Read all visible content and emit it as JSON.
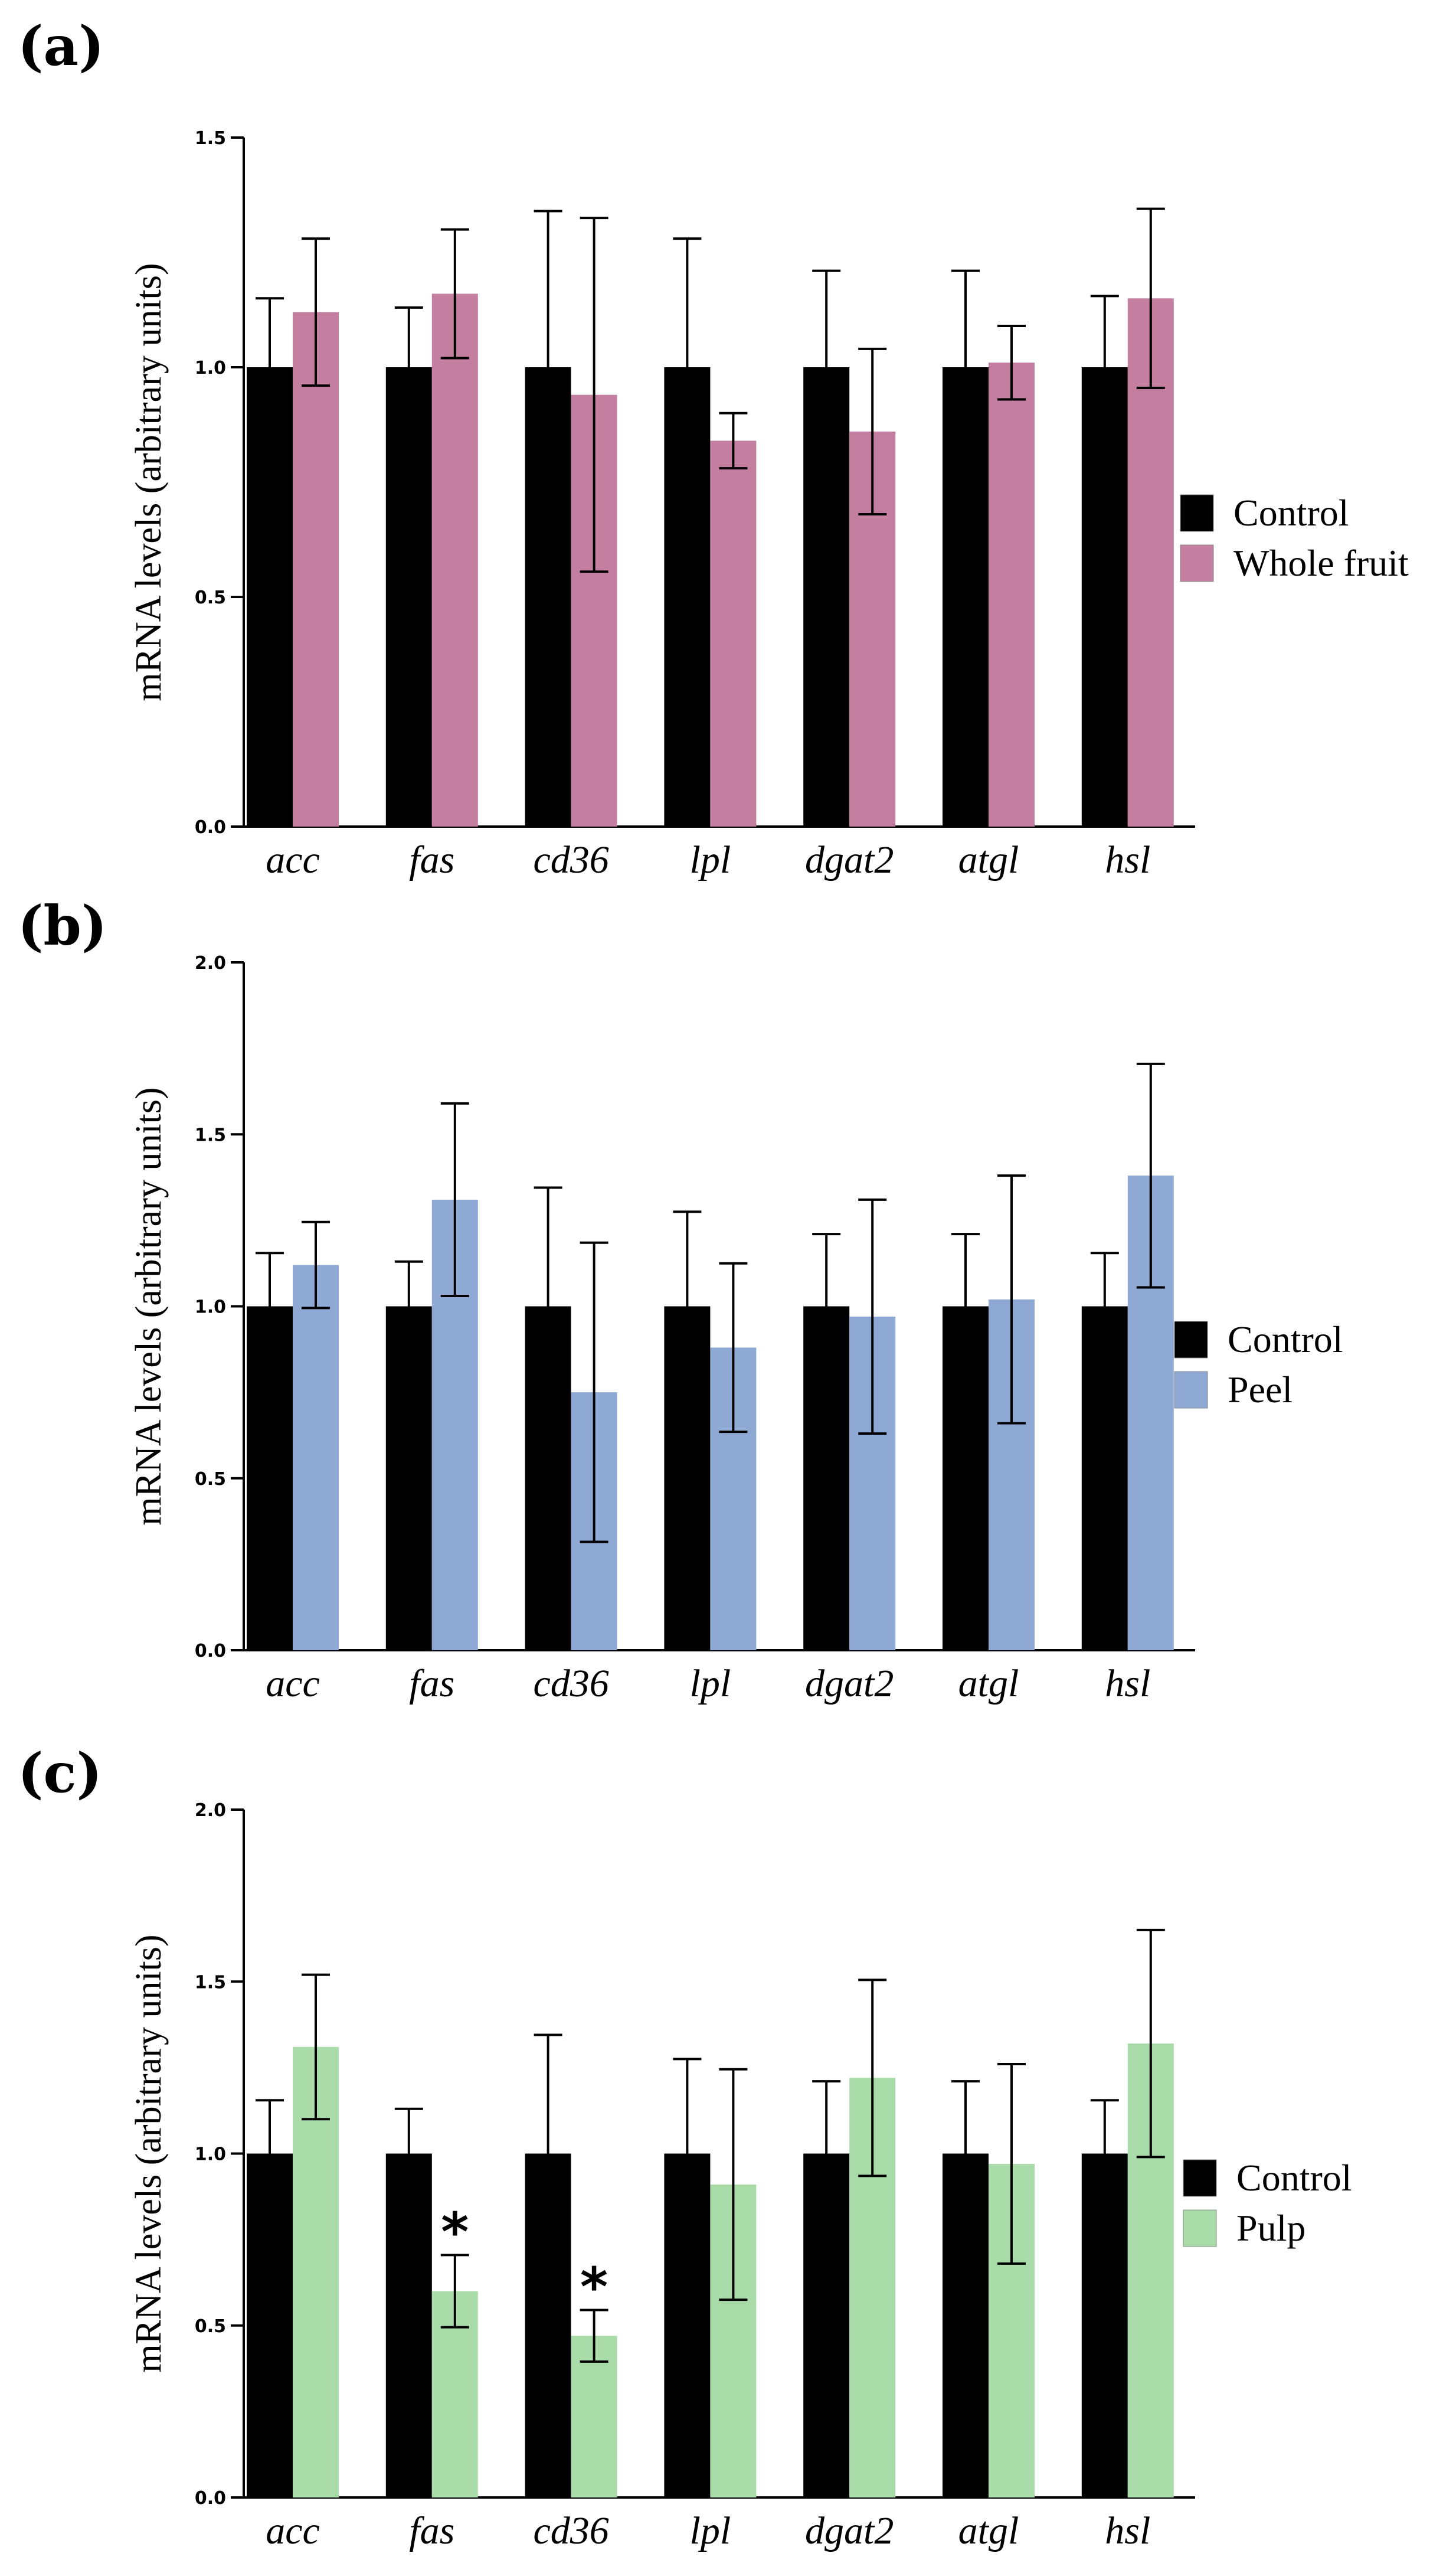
{
  "colors": {
    "control": "#000000",
    "whole_fruit": "#c47ea0",
    "peel": "#8eaad4",
    "pulp": "#a9dca8"
  },
  "chart_data": [
    {
      "panel": "(a)",
      "type": "bar",
      "ylabel": "mRNA levels (arbitrary units)",
      "ylim": [
        0,
        1.5
      ],
      "yticks": [
        "0.0",
        "0.5",
        "1.0",
        "1.5"
      ],
      "categories": [
        "acc",
        "fas",
        "cd36",
        "lpl",
        "dgat2",
        "atgl",
        "hsl"
      ],
      "series": [
        {
          "name": "Control",
          "color_key": "control",
          "values": [
            1.0,
            1.0,
            1.0,
            1.0,
            1.0,
            1.0,
            1.0
          ],
          "errors": [
            0.15,
            0.13,
            0.34,
            0.28,
            0.21,
            0.21,
            0.155
          ]
        },
        {
          "name": "Whole fruit",
          "color_key": "whole_fruit",
          "values": [
            1.12,
            1.16,
            0.94,
            0.84,
            0.86,
            1.01,
            1.15
          ],
          "errors": [
            0.16,
            0.14,
            0.385,
            0.06,
            0.18,
            0.08,
            0.195
          ]
        }
      ],
      "annotations": []
    },
    {
      "panel": "(b)",
      "type": "bar",
      "ylabel": "mRNA levels (arbitrary units)",
      "ylim": [
        0,
        2.0
      ],
      "yticks": [
        "0.0",
        "0.5",
        "1.0",
        "1.5",
        "2.0"
      ],
      "categories": [
        "acc",
        "fas",
        "cd36",
        "lpl",
        "dgat2",
        "atgl",
        "hsl"
      ],
      "series": [
        {
          "name": "Control",
          "color_key": "control",
          "values": [
            1.0,
            1.0,
            1.0,
            1.0,
            1.0,
            1.0,
            1.0
          ],
          "errors": [
            0.155,
            0.13,
            0.345,
            0.275,
            0.21,
            0.21,
            0.155
          ]
        },
        {
          "name": "Peel",
          "color_key": "peel",
          "values": [
            1.12,
            1.31,
            0.75,
            0.88,
            0.97,
            1.02,
            1.38
          ],
          "errors": [
            0.125,
            0.28,
            0.435,
            0.245,
            0.34,
            0.36,
            0.325
          ]
        }
      ],
      "annotations": []
    },
    {
      "panel": "(c)",
      "type": "bar",
      "ylabel": "mRNA levels (arbitrary units)",
      "ylim": [
        0,
        2.0
      ],
      "yticks": [
        "0.0",
        "0.5",
        "1.0",
        "1.5",
        "2.0"
      ],
      "categories": [
        "acc",
        "fas",
        "cd36",
        "lpl",
        "dgat2",
        "atgl",
        "hsl"
      ],
      "series": [
        {
          "name": "Control",
          "color_key": "control",
          "values": [
            1.0,
            1.0,
            1.0,
            1.0,
            1.0,
            1.0,
            1.0
          ],
          "errors": [
            0.155,
            0.13,
            0.345,
            0.275,
            0.21,
            0.21,
            0.155
          ]
        },
        {
          "name": "Pulp",
          "color_key": "pulp",
          "values": [
            1.31,
            0.6,
            0.47,
            0.91,
            1.22,
            0.97,
            1.32
          ],
          "errors": [
            0.21,
            0.105,
            0.075,
            0.335,
            0.285,
            0.29,
            0.33
          ]
        }
      ],
      "annotations": [
        {
          "category": "fas",
          "series": "Pulp",
          "text": "*"
        },
        {
          "category": "cd36",
          "series": "Pulp",
          "text": "*"
        }
      ]
    }
  ]
}
